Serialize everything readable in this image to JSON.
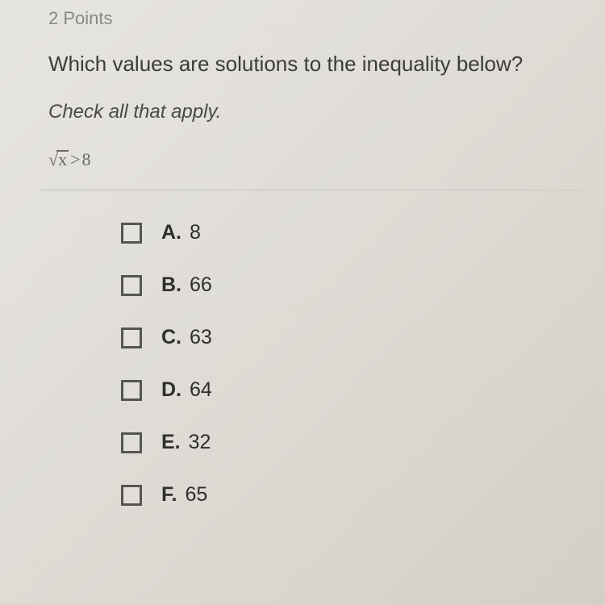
{
  "points_label": "2 Points",
  "question_text": "Which values are solutions to the inequality below?",
  "instruction_text": "Check all that apply.",
  "inequality": {
    "radicand": "x",
    "operator": ">",
    "rhs": "8"
  },
  "options": [
    {
      "letter": "A.",
      "value": "8",
      "checked": false
    },
    {
      "letter": "B.",
      "value": "66",
      "checked": false
    },
    {
      "letter": "C.",
      "value": "63",
      "checked": false
    },
    {
      "letter": "D.",
      "value": "64",
      "checked": false
    },
    {
      "letter": "E.",
      "value": "32",
      "checked": false
    },
    {
      "letter": "F.",
      "value": "65",
      "checked": false
    }
  ],
  "colors": {
    "text_primary": "#3c3c3a",
    "text_muted": "#888884",
    "checkbox_border": "#555552",
    "background_start": "#e8e6e2",
    "background_end": "#d4d0c8"
  }
}
